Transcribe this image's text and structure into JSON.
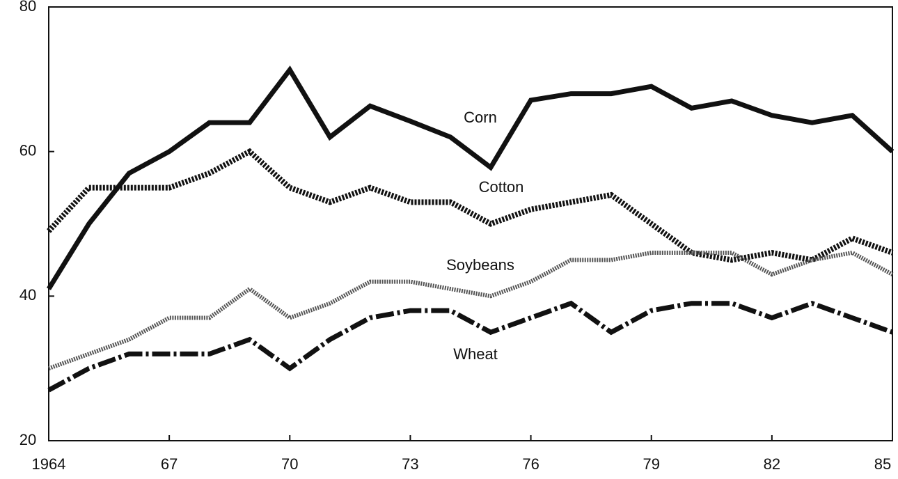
{
  "chart_data": {
    "type": "line",
    "x": [
      1964,
      1965,
      1966,
      1967,
      1968,
      1969,
      1970,
      1971,
      1972,
      1973,
      1974,
      1975,
      1976,
      1977,
      1978,
      1979,
      1980,
      1981,
      1982,
      1983,
      1984,
      1985
    ],
    "xlim": [
      1964,
      1985
    ],
    "xticks": [
      1964,
      {
        "value": 1967,
        "label": "67"
      },
      {
        "value": 1970,
        "label": "70"
      },
      {
        "value": 1973,
        "label": "73"
      },
      {
        "value": 1976,
        "label": "76"
      },
      {
        "value": 1979,
        "label": "79"
      },
      {
        "value": 1982,
        "label": "82"
      },
      {
        "value": 1985,
        "label": "85"
      }
    ],
    "ylim": [
      20,
      80
    ],
    "yticks": [
      20,
      40,
      60,
      80
    ],
    "grid": false,
    "series": [
      {
        "name": "Corn",
        "color": "#111111",
        "dash": "solid",
        "values": [
          41,
          50,
          57,
          60,
          64,
          64,
          71.3,
          62,
          66.3,
          64.2,
          62,
          57.8,
          67.1,
          68,
          68,
          69,
          66,
          67,
          65,
          64,
          65,
          60
        ]
      },
      {
        "name": "Cotton",
        "color": "#111111",
        "dash": "dotted",
        "values": [
          49,
          55,
          55,
          55,
          57,
          60,
          55,
          53,
          55,
          53,
          53,
          50,
          52,
          53,
          54,
          50,
          46,
          45,
          46,
          45,
          48,
          46
        ]
      },
      {
        "name": "Soybeans",
        "color": "#555555",
        "dash": "fine",
        "values": [
          30,
          32,
          34,
          37,
          37,
          41,
          37,
          39,
          42,
          42,
          41,
          40,
          42,
          45,
          45,
          46,
          46,
          46,
          43,
          45,
          46,
          43
        ]
      },
      {
        "name": "Wheat",
        "color": "#111111",
        "dash": "dashdot",
        "values": [
          27,
          30,
          32,
          32,
          32,
          34,
          30,
          34,
          37,
          38,
          38,
          35,
          37,
          39,
          35,
          38,
          39,
          39,
          37,
          39,
          37,
          35
        ]
      }
    ]
  }
}
